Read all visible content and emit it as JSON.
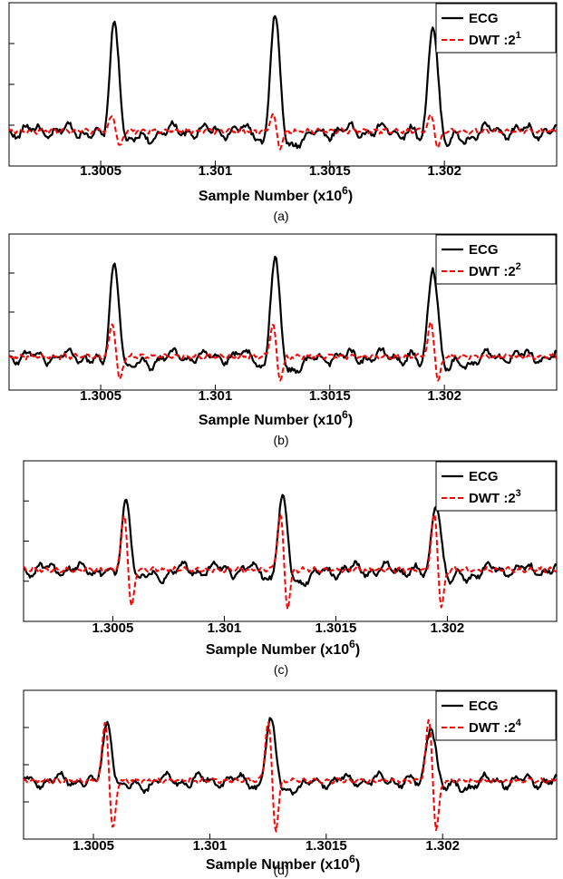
{
  "chart_data": [
    {
      "type": "line",
      "panel_caption": "(a)",
      "xlabel": "Sample Number (x10",
      "xlabel_exponent": "6",
      "xlabel_suffix": ")",
      "xtick_labels": [
        "1.3005",
        "1.301",
        "1.3015",
        "1.302"
      ],
      "xticks": [
        1.3005,
        1.301,
        1.3015,
        1.302
      ],
      "xlim": [
        1.3001,
        1.30249
      ],
      "ylim": [
        -0.6,
        2.2
      ],
      "grid": false,
      "legend_position": "top-right",
      "peaks": [
        1.30056,
        1.30126,
        1.30195
      ],
      "series": [
        {
          "name": "ECG",
          "name_exponent": "",
          "color": "#000000",
          "style": "solid",
          "peak_value": 2.0,
          "q_value": -0.35,
          "s_value": -0.25
        },
        {
          "name": "DWT :2",
          "name_exponent": "1",
          "color": "#ff0000",
          "style": "dashed",
          "peak_value": 0.28,
          "trough_value": -0.3
        }
      ]
    },
    {
      "type": "line",
      "panel_caption": "(b)",
      "xlabel": "Sample Number (x10",
      "xlabel_exponent": "6",
      "xlabel_suffix": ")",
      "xtick_labels": [
        "1.3005",
        "1.301",
        "1.3015",
        "1.302"
      ],
      "xticks": [
        1.3005,
        1.301,
        1.3015,
        1.302
      ],
      "xlim": [
        1.3001,
        1.30249
      ],
      "ylim": [
        -0.6,
        2.2
      ],
      "grid": false,
      "legend_position": "top-right",
      "peaks": [
        1.30056,
        1.30126,
        1.30195
      ],
      "series": [
        {
          "name": "ECG",
          "name_exponent": "",
          "color": "#000000",
          "style": "solid",
          "peak_value": 1.8,
          "q_value": -0.35,
          "s_value": -0.25
        },
        {
          "name": "DWT :2",
          "name_exponent": "2",
          "color": "#ff0000",
          "style": "dashed",
          "peak_value": 0.6,
          "trough_value": -0.45
        }
      ]
    },
    {
      "type": "line",
      "panel_caption": "(c)",
      "xlabel": "Sample Number (x10",
      "xlabel_exponent": "6",
      "xlabel_suffix": ")",
      "xtick_labels": [
        "1.3005",
        "1.301",
        "1.3015",
        "1.302"
      ],
      "xticks": [
        1.3005,
        1.301,
        1.3015,
        1.302
      ],
      "xlim": [
        1.3001,
        1.30249
      ],
      "ylim": [
        -0.9,
        1.9
      ],
      "grid": false,
      "legend_position": "top-right",
      "peaks": [
        1.30056,
        1.30126,
        1.30195
      ],
      "series": [
        {
          "name": "ECG",
          "name_exponent": "",
          "color": "#000000",
          "style": "solid",
          "peak_value": 1.3,
          "q_value": -0.25,
          "s_value": -0.2
        },
        {
          "name": "DWT :2",
          "name_exponent": "3",
          "color": "#ff0000",
          "style": "dashed",
          "peak_value": 1.0,
          "trough_value": -0.7
        }
      ]
    },
    {
      "type": "line",
      "panel_caption": "(d)",
      "xlabel": "Sample Number (x10",
      "xlabel_exponent": "6",
      "xlabel_suffix": ")",
      "xtick_labels": [
        "1.3005",
        "1.301",
        "1.3015",
        "1.302"
      ],
      "xticks": [
        1.3005,
        1.301,
        1.3015,
        1.302
      ],
      "xlim": [
        1.3002,
        1.30249
      ],
      "ylim": [
        -1.1,
        1.7
      ],
      "grid": false,
      "legend_position": "top-right",
      "peaks": [
        1.30056,
        1.30126,
        1.30195
      ],
      "series": [
        {
          "name": "ECG",
          "name_exponent": "",
          "color": "#000000",
          "style": "solid",
          "peak_value": 1.15,
          "q_value": -0.2,
          "s_value": -0.15
        },
        {
          "name": "DWT :2",
          "name_exponent": "4",
          "color": "#ff0000",
          "style": "dashed",
          "peak_value": 1.15,
          "trough_value": -1.0
        }
      ]
    }
  ]
}
